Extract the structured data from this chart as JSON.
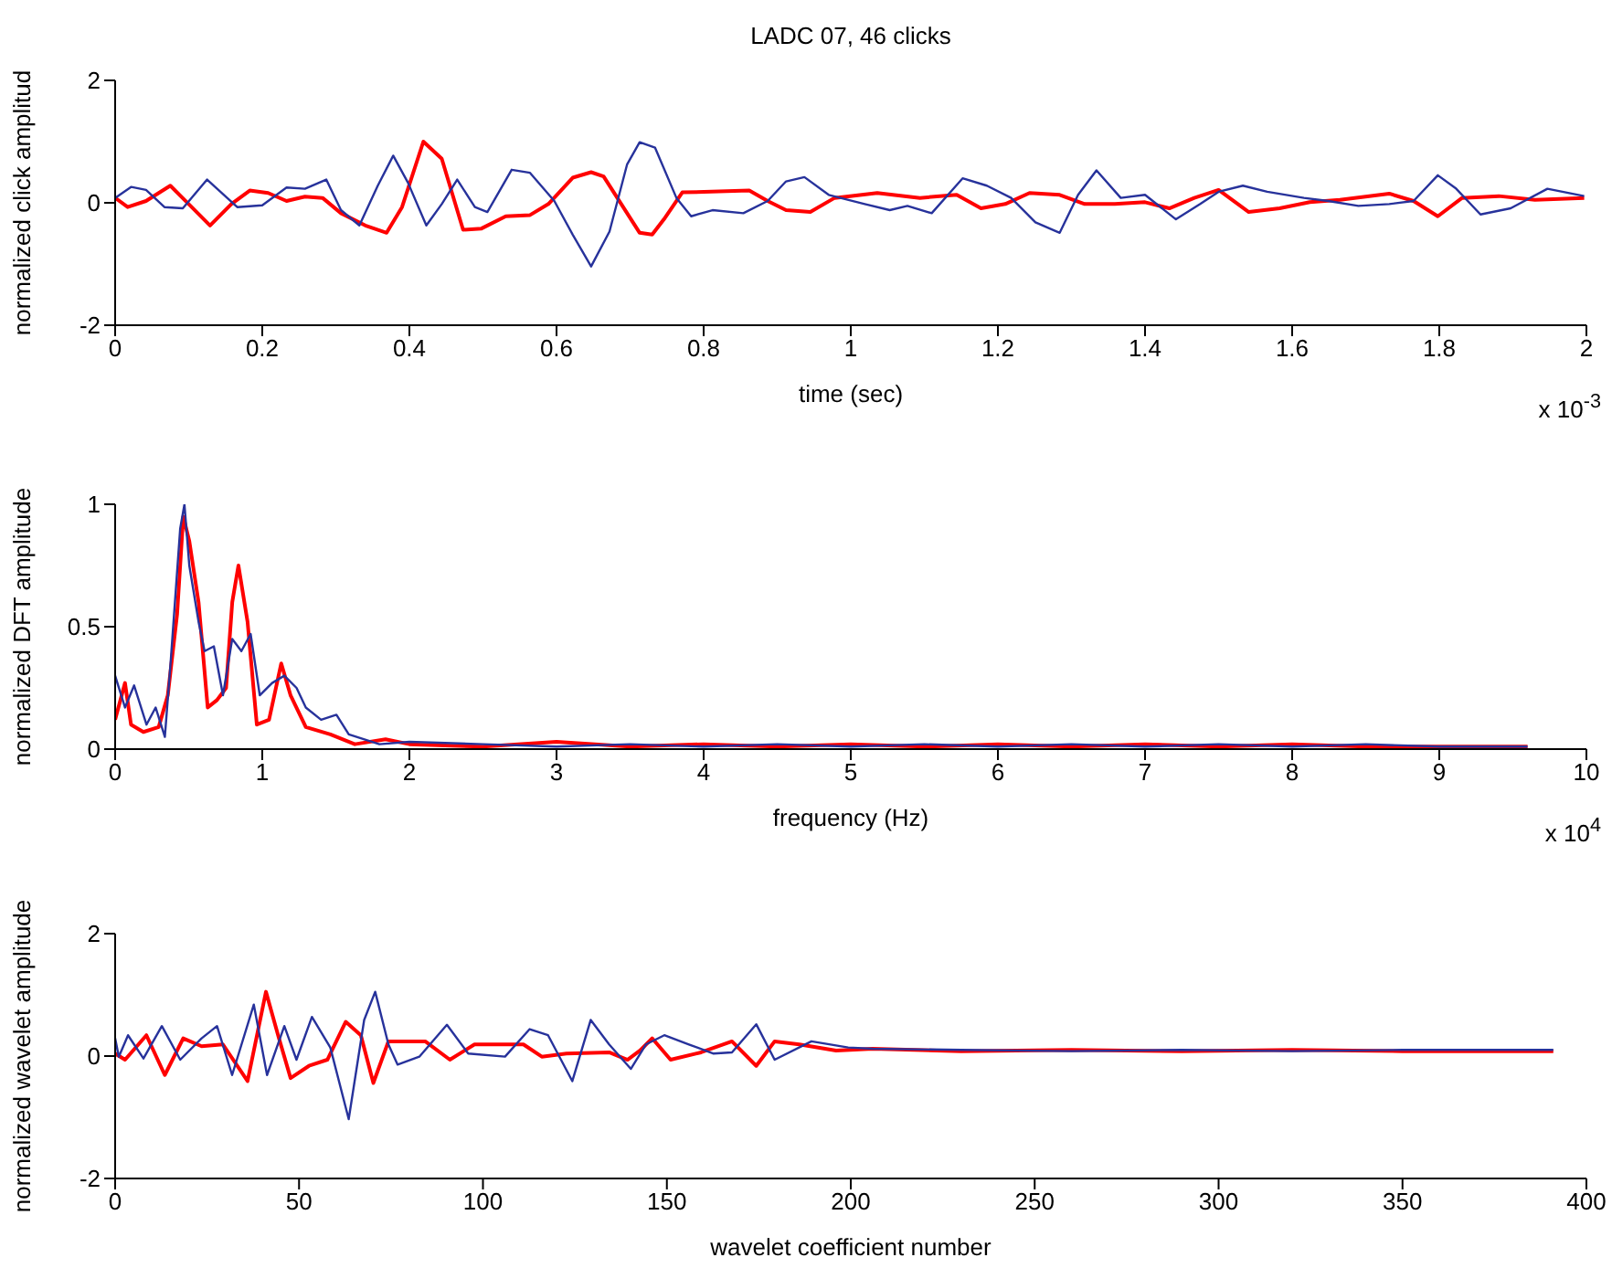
{
  "chart_data": [
    {
      "type": "line",
      "title": "LADC 07, 46 clicks",
      "xlabel": "time (sec)",
      "ylabel": "normalized click amplitud",
      "annotations": [
        "x 10$^{-3}$"
      ],
      "xlim": [
        0,
        2
      ],
      "xticks": [
        0,
        0.2,
        0.4,
        0.6,
        0.8,
        1,
        1.2,
        1.4,
        1.6,
        1.8,
        2
      ],
      "ylim": [
        -2,
        2
      ],
      "yticks": [
        -2,
        0,
        2
      ],
      "grid": false,
      "marker": "none",
      "line_style": "solid",
      "series": [
        {
          "color": "#ff0000",
          "x": [
            0,
            0.017,
            0.042,
            0.075,
            0.1,
            0.129,
            0.158,
            0.183,
            0.208,
            0.233,
            0.258,
            0.282,
            0.307,
            0.34,
            0.369,
            0.39,
            0.419,
            0.444,
            0.473,
            0.498,
            0.531,
            0.564,
            0.589,
            0.622,
            0.647,
            0.664,
            0.688,
            0.713,
            0.73,
            0.746,
            0.771,
            0.862,
            0.887,
            0.912,
            0.945,
            0.978,
            1.036,
            1.094,
            1.144,
            1.177,
            1.21,
            1.243,
            1.284,
            1.318,
            1.359,
            1.4,
            1.433,
            1.467,
            1.5,
            1.541,
            1.583,
            1.624,
            1.665,
            1.732,
            1.765,
            1.798,
            1.831,
            1.881,
            1.93,
            1.997
          ],
          "values": [
            0.08,
            -0.07,
            0.03,
            0.28,
            -0.02,
            -0.37,
            -0.02,
            0.2,
            0.16,
            0.03,
            0.1,
            0.08,
            -0.17,
            -0.37,
            -0.49,
            -0.07,
            1.0,
            0.72,
            -0.44,
            -0.42,
            -0.22,
            -0.2,
            -0.02,
            0.41,
            0.5,
            0.43,
            -0.02,
            -0.49,
            -0.52,
            -0.27,
            0.17,
            0.2,
            0.03,
            -0.12,
            -0.15,
            0.08,
            0.16,
            0.08,
            0.13,
            -0.09,
            -0.02,
            0.16,
            0.13,
            -0.02,
            -0.02,
            0.01,
            -0.09,
            0.08,
            0.21,
            -0.15,
            -0.09,
            0.01,
            0.05,
            0.15,
            0.03,
            -0.22,
            0.08,
            0.11,
            0.05,
            0.08
          ]
        },
        {
          "color": "#27329b",
          "x": [
            0,
            0.022,
            0.042,
            0.067,
            0.092,
            0.125,
            0.166,
            0.2,
            0.233,
            0.258,
            0.287,
            0.307,
            0.332,
            0.357,
            0.378,
            0.398,
            0.423,
            0.444,
            0.465,
            0.489,
            0.506,
            0.539,
            0.564,
            0.597,
            0.622,
            0.647,
            0.672,
            0.696,
            0.713,
            0.734,
            0.763,
            0.783,
            0.812,
            0.854,
            0.887,
            0.912,
            0.937,
            0.97,
            1.019,
            1.053,
            1.077,
            1.11,
            1.152,
            1.185,
            1.218,
            1.251,
            1.284,
            1.309,
            1.334,
            1.367,
            1.4,
            1.442,
            1.475,
            1.5,
            1.533,
            1.566,
            1.616,
            1.649,
            1.69,
            1.732,
            1.765,
            1.798,
            1.823,
            1.856,
            1.897,
            1.947,
            1.997
          ],
          "values": [
            0.08,
            0.26,
            0.21,
            -0.07,
            -0.09,
            0.38,
            -0.07,
            -0.04,
            0.25,
            0.23,
            0.38,
            -0.12,
            -0.37,
            0.28,
            0.77,
            0.33,
            -0.37,
            -0.02,
            0.38,
            -0.07,
            -0.15,
            0.54,
            0.49,
            0.03,
            -0.52,
            -1.04,
            -0.47,
            0.63,
            0.99,
            0.9,
            0.08,
            -0.22,
            -0.12,
            -0.17,
            0.03,
            0.35,
            0.42,
            0.13,
            -0.02,
            -0.12,
            -0.05,
            -0.17,
            0.4,
            0.28,
            0.08,
            -0.32,
            -0.49,
            0.13,
            0.53,
            0.08,
            0.13,
            -0.27,
            -0.02,
            0.18,
            0.28,
            0.18,
            0.08,
            0.03,
            -0.05,
            -0.02,
            0.03,
            0.45,
            0.23,
            -0.19,
            -0.09,
            0.23,
            0.11
          ]
        }
      ]
    },
    {
      "type": "line",
      "xlabel": "frequency (Hz)",
      "ylabel": "normalized DFT amplitude",
      "annotations": [
        "x 10$^{4}$"
      ],
      "xlim": [
        0,
        10
      ],
      "xticks": [
        0,
        1,
        2,
        3,
        4,
        5,
        6,
        7,
        8,
        9,
        10
      ],
      "ylim": [
        0,
        1
      ],
      "yticks": [
        0,
        0.5,
        1
      ],
      "grid": false,
      "marker": "none",
      "line_style": "solid",
      "series": [
        {
          "color": "#ff0000",
          "x": [
            0,
            0.067,
            0.108,
            0.192,
            0.296,
            0.358,
            0.421,
            0.463,
            0.504,
            0.567,
            0.629,
            0.692,
            0.754,
            0.796,
            0.838,
            0.9,
            0.963,
            1.046,
            1.129,
            1.192,
            1.296,
            1.463,
            1.629,
            1.838,
            2,
            2.5,
            3,
            3.5,
            4,
            4.5,
            5,
            5.5,
            6,
            6.5,
            7,
            7.5,
            8,
            8.5,
            9,
            9.6
          ],
          "values": [
            0.12,
            0.27,
            0.1,
            0.07,
            0.09,
            0.22,
            0.55,
            0.95,
            0.85,
            0.6,
            0.17,
            0.2,
            0.25,
            0.6,
            0.75,
            0.52,
            0.1,
            0.12,
            0.35,
            0.22,
            0.09,
            0.06,
            0.02,
            0.04,
            0.02,
            0.01,
            0.03,
            0.01,
            0.02,
            0.01,
            0.02,
            0.01,
            0.02,
            0.01,
            0.02,
            0.01,
            0.02,
            0.01,
            0.01,
            0.01
          ]
        },
        {
          "color": "#27329b",
          "x": [
            0,
            0.067,
            0.129,
            0.213,
            0.275,
            0.338,
            0.379,
            0.442,
            0.471,
            0.504,
            0.567,
            0.608,
            0.671,
            0.733,
            0.796,
            0.858,
            0.921,
            0.983,
            1.067,
            1.15,
            1.233,
            1.296,
            1.4,
            1.504,
            1.588,
            1.796,
            2,
            2.5,
            3,
            3.5,
            4,
            4.5,
            5,
            5.5,
            6,
            6.5,
            7,
            7.5,
            8,
            8.5,
            9,
            9.6
          ],
          "values": [
            0.3,
            0.17,
            0.26,
            0.1,
            0.17,
            0.05,
            0.37,
            0.9,
            1.0,
            0.75,
            0.52,
            0.4,
            0.42,
            0.22,
            0.45,
            0.4,
            0.47,
            0.22,
            0.27,
            0.3,
            0.25,
            0.17,
            0.12,
            0.14,
            0.06,
            0.02,
            0.03,
            0.02,
            0.01,
            0.02,
            0.01,
            0.02,
            0.01,
            0.02,
            0.01,
            0.02,
            0.01,
            0.02,
            0.01,
            0.02,
            0.01,
            0.01
          ]
        }
      ]
    },
    {
      "type": "line",
      "xlabel": "wavelet coefficient number",
      "ylabel": "normalized wavelet amplitude",
      "xlim": [
        0,
        400
      ],
      "xticks": [
        0,
        50,
        100,
        150,
        200,
        250,
        300,
        350,
        400
      ],
      "ylim": [
        -2,
        2
      ],
      "yticks": [
        -2,
        0,
        2
      ],
      "grid": false,
      "marker": "none",
      "line_style": "solid",
      "series": [
        {
          "color": "#ff0000",
          "x": [
            0,
            2.7,
            8.5,
            13.5,
            18.5,
            23.5,
            29.3,
            36,
            41,
            44.3,
            47.7,
            52.7,
            57.7,
            62.7,
            66.8,
            70.2,
            74.3,
            84.3,
            91,
            97.7,
            104.3,
            111,
            116,
            122.7,
            134.3,
            139.3,
            142.7,
            146,
            151,
            159.3,
            167.7,
            174.3,
            179.3,
            186,
            196,
            206,
            230,
            260,
            290,
            320,
            350,
            391
          ],
          "values": [
            0.04,
            -0.06,
            0.34,
            -0.31,
            0.29,
            0.16,
            0.19,
            -0.41,
            1.05,
            0.34,
            -0.36,
            -0.16,
            -0.06,
            0.56,
            0.34,
            -0.44,
            0.24,
            0.24,
            -0.06,
            0.19,
            0.19,
            0.19,
            -0.01,
            0.04,
            0.06,
            -0.06,
            0.09,
            0.29,
            -0.06,
            0.06,
            0.24,
            -0.16,
            0.24,
            0.19,
            0.09,
            0.12,
            0.08,
            0.1,
            0.08,
            0.1,
            0.08,
            0.08
          ]
        },
        {
          "color": "#27329b",
          "x": [
            0,
            1,
            3.5,
            7.7,
            12.7,
            17.7,
            23.5,
            27.7,
            31.8,
            37.7,
            41.3,
            46,
            49.3,
            53.5,
            58.5,
            63.5,
            67.7,
            70.7,
            74.3,
            76.8,
            82.7,
            90.2,
            96,
            106,
            112.7,
            117.7,
            124.3,
            129.3,
            134.3,
            140.2,
            144.3,
            149.3,
            156,
            162.7,
            167.7,
            174.3,
            179.3,
            189.3,
            199.3,
            206,
            230,
            260,
            290,
            320,
            350,
            391
          ],
          "values": [
            0.29,
            -0.01,
            0.34,
            -0.04,
            0.49,
            -0.06,
            0.29,
            0.49,
            -0.31,
            0.84,
            -0.31,
            0.49,
            -0.06,
            0.64,
            0.14,
            -1.03,
            0.59,
            1.05,
            0.19,
            -0.14,
            -0.01,
            0.51,
            0.04,
            -0.01,
            0.44,
            0.34,
            -0.41,
            0.59,
            0.19,
            -0.21,
            0.19,
            0.34,
            0.19,
            0.04,
            0.06,
            0.52,
            -0.06,
            0.24,
            0.14,
            0.12,
            0.1,
            0.08,
            0.1,
            0.08,
            0.1,
            0.1
          ]
        }
      ]
    }
  ]
}
